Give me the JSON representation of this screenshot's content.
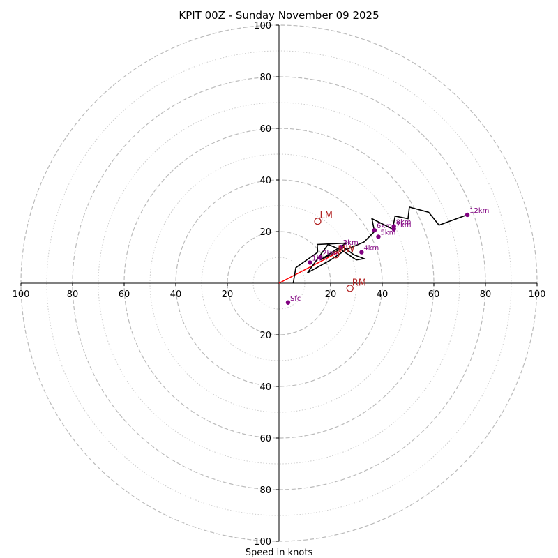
{
  "chart_data": {
    "type": "hodograph",
    "title": "KPIT 00Z - Sunday November 09 2025",
    "xlabel": "Speed in knots",
    "range_knots": [
      -100,
      100
    ],
    "rings_major_knots": [
      20,
      40,
      60,
      80,
      100
    ],
    "rings_minor_knots": [
      10,
      30,
      50,
      70,
      90
    ],
    "tick_values": [
      100,
      80,
      60,
      40,
      20
    ],
    "grid": true,
    "profile_uv_knots": [
      [
        5.5,
        0
      ],
      [
        6.5,
        6
      ],
      [
        15,
        12
      ],
      [
        14.8,
        15
      ],
      [
        26,
        15.5
      ],
      [
        16,
        9
      ],
      [
        20,
        11
      ],
      [
        25,
        14
      ],
      [
        29,
        11
      ],
      [
        33,
        9.5
      ],
      [
        30,
        9
      ],
      [
        24,
        13
      ],
      [
        19,
        15
      ],
      [
        11,
        4
      ],
      [
        20,
        9
      ],
      [
        26,
        13
      ],
      [
        33,
        16
      ],
      [
        37,
        20
      ],
      [
        36,
        25
      ],
      [
        40,
        23
      ],
      [
        44,
        21
      ],
      [
        45,
        26
      ],
      [
        50,
        25
      ],
      [
        50.5,
        29.5
      ],
      [
        58,
        27.5
      ],
      [
        62,
        22.5
      ],
      [
        73,
        26.5
      ]
    ],
    "height_markers": [
      {
        "label": "Sfc",
        "u": 3.5,
        "v": -7.5
      },
      {
        "label": "1km",
        "u": 12,
        "v": 8
      },
      {
        "label": "2km",
        "u": 16,
        "v": 10
      },
      {
        "label": "3km",
        "u": 24,
        "v": 14
      },
      {
        "label": "4km",
        "u": 32,
        "v": 12
      },
      {
        "label": "5km",
        "u": 38.5,
        "v": 18
      },
      {
        "label": "6km",
        "u": 37,
        "v": 20.5
      },
      {
        "label": "7km",
        "u": 44.5,
        "v": 21
      },
      {
        "label": "8km",
        "u": 44.5,
        "v": 22
      },
      {
        "label": "12km",
        "u": 73,
        "v": 26.5
      }
    ],
    "storm_motion": [
      {
        "label": "LM",
        "u": 15,
        "v": 24
      },
      {
        "label": "RM",
        "u": 27.5,
        "v": -2
      },
      {
        "label": "MW",
        "u": 22,
        "v": 11
      }
    ],
    "mean_vector_endpoint_uv": [
      24,
      12.5
    ],
    "colors": {
      "hodo_line": "#000000",
      "height_marker": "#800080",
      "storm_motion": "#b22222",
      "mean_vector": "#ff0000",
      "major_grid": "#bbbbbb",
      "minor_grid": "#cccccc"
    }
  }
}
